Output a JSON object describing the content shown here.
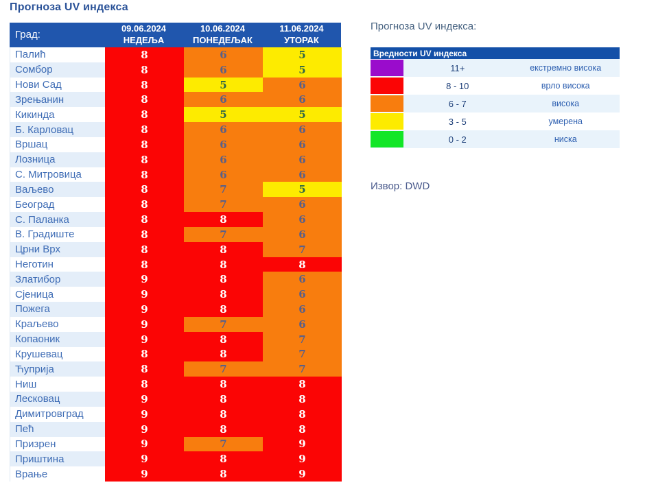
{
  "title": "Прогноза UV индекса",
  "side_title": "Прогноза UV индекса:",
  "source": "Извор: DWD",
  "colors": {
    "red": {
      "bg": "#fb0505",
      "text": "#ffffff"
    },
    "orange": {
      "bg": "#f87d0e",
      "text": "#59608a"
    },
    "yellow": {
      "bg": "#fdeb00",
      "text": "#2f6647"
    },
    "purple": {
      "bg": "#9a0ccc"
    },
    "green": {
      "bg": "#12e627"
    },
    "header_bg": "#2056ad",
    "legend_header_bg": "#1450a8",
    "alt_row_bg": "#e4eef9"
  },
  "table": {
    "city_header": "Град:",
    "columns": [
      {
        "date": "09.06.2024",
        "day": "НЕДЕЉА"
      },
      {
        "date": "10.06.2024",
        "day": "ПОНЕДЕЉАК"
      },
      {
        "date": "11.06.2024",
        "day": "УТОРАК"
      }
    ]
  },
  "chart_data": {
    "type": "table",
    "title": "Прогноза UV индекса",
    "columns": [
      "Град:",
      "09.06.2024 НЕДЕЉА",
      "10.06.2024 ПОНЕДЕЉАК",
      "11.06.2024 УТОРАК"
    ],
    "value_color_rule": {
      "8-10": "red",
      "6-7": "orange",
      "3-5": "yellow"
    },
    "rows": [
      {
        "city": "Палић",
        "values": [
          8,
          6,
          5
        ]
      },
      {
        "city": "Сомбор",
        "values": [
          8,
          6,
          5
        ]
      },
      {
        "city": "Нови Сад",
        "values": [
          8,
          5,
          6
        ]
      },
      {
        "city": "Зрењанин",
        "values": [
          8,
          6,
          6
        ]
      },
      {
        "city": "Кикинда",
        "values": [
          8,
          5,
          5
        ]
      },
      {
        "city": "Б. Карловац",
        "values": [
          8,
          6,
          6
        ]
      },
      {
        "city": "Вршац",
        "values": [
          8,
          6,
          6
        ]
      },
      {
        "city": "Лозница",
        "values": [
          8,
          6,
          6
        ]
      },
      {
        "city": "С. Митровица",
        "values": [
          8,
          6,
          6
        ]
      },
      {
        "city": "Ваљево",
        "values": [
          8,
          7,
          5
        ]
      },
      {
        "city": "Београд",
        "values": [
          8,
          7,
          6
        ]
      },
      {
        "city": "С. Паланка",
        "values": [
          8,
          8,
          6
        ]
      },
      {
        "city": "В. Градиште",
        "values": [
          8,
          7,
          6
        ]
      },
      {
        "city": "Црни Врх",
        "values": [
          8,
          8,
          7
        ]
      },
      {
        "city": "Неготин",
        "values": [
          8,
          8,
          8
        ]
      },
      {
        "city": "Златибор",
        "values": [
          9,
          8,
          6
        ]
      },
      {
        "city": "Сјеница",
        "values": [
          9,
          8,
          6
        ]
      },
      {
        "city": "Пожега",
        "values": [
          9,
          8,
          6
        ]
      },
      {
        "city": "Краљево",
        "values": [
          9,
          7,
          6
        ]
      },
      {
        "city": "Копаоник",
        "values": [
          9,
          8,
          7
        ]
      },
      {
        "city": "Крушевац",
        "values": [
          8,
          8,
          7
        ]
      },
      {
        "city": "Ћуприја",
        "values": [
          8,
          7,
          7
        ]
      },
      {
        "city": "Ниш",
        "values": [
          8,
          8,
          8
        ]
      },
      {
        "city": "Лесковац",
        "values": [
          9,
          8,
          8
        ]
      },
      {
        "city": "Димитровград",
        "values": [
          9,
          8,
          8
        ]
      },
      {
        "city": "Пећ",
        "values": [
          9,
          8,
          8
        ]
      },
      {
        "city": "Призрен",
        "values": [
          9,
          7,
          9
        ]
      },
      {
        "city": "Приштина",
        "values": [
          9,
          8,
          9
        ]
      },
      {
        "city": "Врање",
        "values": [
          9,
          8,
          9
        ]
      }
    ]
  },
  "legend": {
    "header": "Вредности UV индекса",
    "items": [
      {
        "range": "11+",
        "label": "екстремно висока",
        "color": "purple"
      },
      {
        "range": "8 - 10",
        "label": "врло висока",
        "color": "red"
      },
      {
        "range": "6 - 7",
        "label": "висока",
        "color": "orange"
      },
      {
        "range": "3 - 5",
        "label": "умерена",
        "color": "yellow"
      },
      {
        "range": "0 - 2",
        "label": "ниска",
        "color": "green"
      }
    ]
  }
}
